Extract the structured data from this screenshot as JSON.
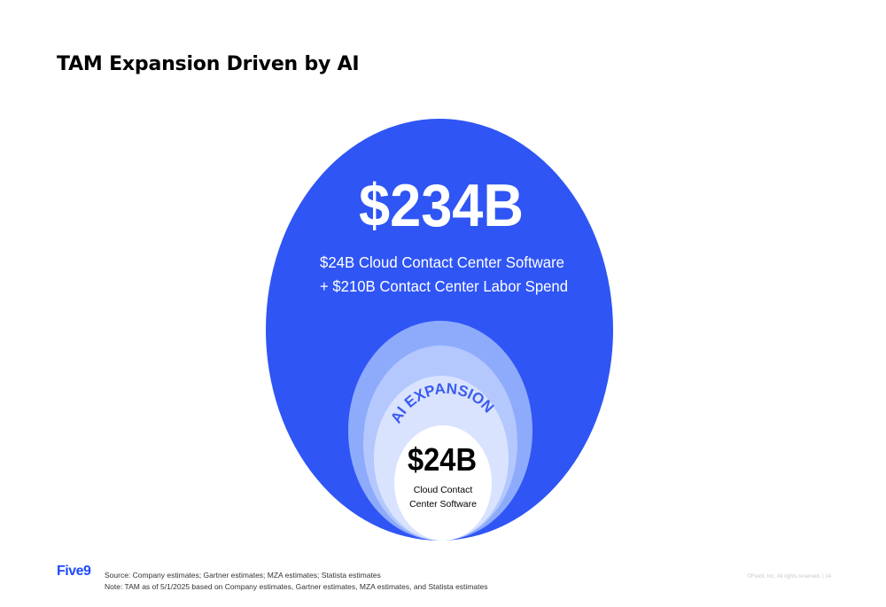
{
  "title": "TAM Expansion Driven by AI",
  "outer_tam": {
    "value": "$234B",
    "line1": "$24B Cloud Contact Center Software",
    "line2": "+ $210B Contact Center Labor Spend"
  },
  "expansion_label": "AI EXPANSION",
  "inner_tam": {
    "value": "$24B",
    "line1": "Cloud Contact",
    "line2": "Center Software"
  },
  "colors": {
    "primary_blue": "#2f55f5",
    "ring_1": "#8eabfb",
    "ring_2": "#b4c8fd",
    "ring_3": "#d9e3fe",
    "label_blue": "#3a5cf0",
    "logo_blue": "#1f4bff"
  },
  "footer": {
    "logo": "Five9",
    "source": "Source: Company estimates; Gartner estimates; MZA estimates; Statista estimates",
    "note": "Note: TAM as of 5/1/2025 based on Company estimates, Gartner estimates, MZA estimates, and Statista estimates",
    "copyright": "©Five9, Inc. All rights reserved. | 14"
  }
}
